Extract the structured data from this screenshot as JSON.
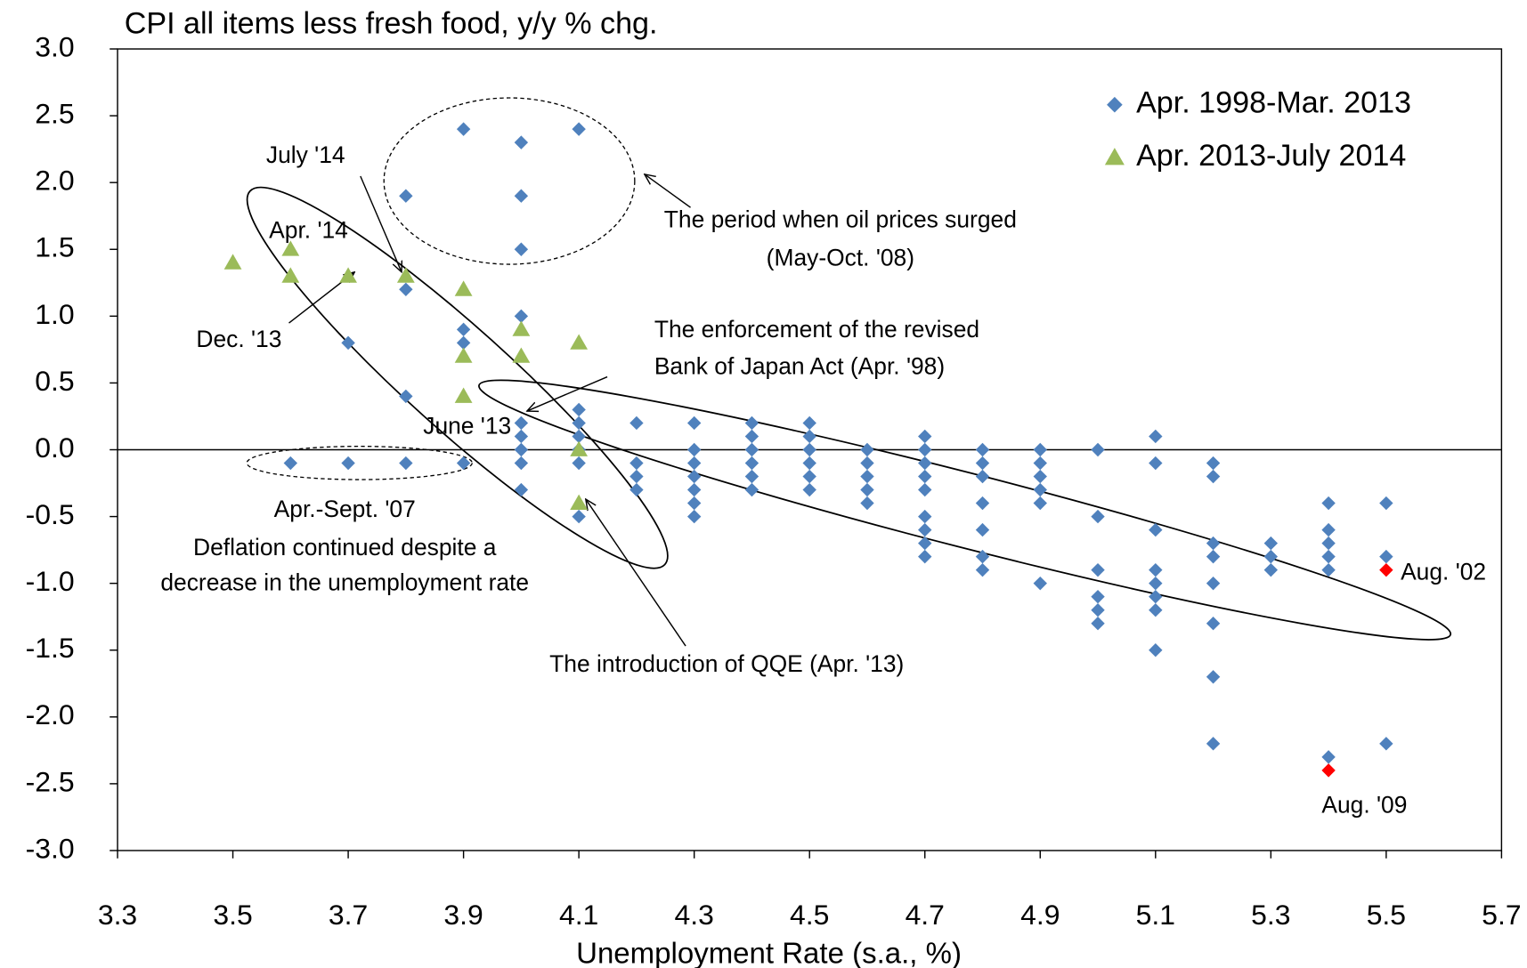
{
  "chart_data": {
    "type": "scatter",
    "title": "CPI all items less fresh food, y/y % chg.",
    "x_label": "Unemployment Rate (s.a., %)",
    "xlim": [
      3.3,
      5.7
    ],
    "xticks": [
      3.3,
      3.5,
      3.7,
      3.9,
      4.1,
      4.3,
      4.5,
      4.7,
      4.9,
      5.1,
      5.3,
      5.5,
      5.7
    ],
    "ylim": [
      -3,
      3
    ],
    "yticks": [
      {
        "value": -3,
        "label": "-3.0"
      },
      -2.5,
      {
        "value": -2,
        "label": "-2.0"
      },
      -1.5,
      {
        "value": -1,
        "label": "-1.0"
      },
      -0.5,
      {
        "value": 0,
        "label": "0.0"
      },
      0.5,
      {
        "value": 1,
        "label": "1.0"
      },
      1.5,
      {
        "value": 2,
        "label": "2.0"
      },
      2.5,
      {
        "value": 3,
        "label": "3.0"
      }
    ],
    "grid": false,
    "legend": "upper right",
    "series": [
      {
        "name": "Apr. 1998-Mar. 2013",
        "color": "#4f81bd",
        "marker": "diamond",
        "x": [
          3.6,
          3.7,
          3.7,
          3.8,
          3.8,
          3.8,
          3.8,
          3.9,
          3.9,
          3.9,
          3.9,
          4.0,
          4.0,
          4.0,
          4.0,
          4.0,
          4.0,
          4.0,
          4.0,
          4.0,
          4.1,
          4.1,
          4.1,
          4.1,
          4.1,
          4.1,
          4.1,
          4.2,
          4.2,
          4.2,
          4.2,
          4.3,
          4.3,
          4.3,
          4.3,
          4.3,
          4.3,
          4.3,
          4.4,
          4.4,
          4.4,
          4.4,
          4.4,
          4.4,
          4.5,
          4.5,
          4.5,
          4.5,
          4.5,
          4.5,
          4.6,
          4.6,
          4.6,
          4.6,
          4.6,
          4.7,
          4.7,
          4.7,
          4.7,
          4.7,
          4.7,
          4.7,
          4.7,
          4.7,
          4.8,
          4.8,
          4.8,
          4.8,
          4.8,
          4.8,
          4.8,
          4.9,
          4.9,
          4.9,
          4.9,
          4.9,
          4.9,
          5.0,
          5.0,
          5.0,
          5.0,
          5.0,
          5.0,
          5.1,
          5.1,
          5.1,
          5.1,
          5.1,
          5.1,
          5.1,
          5.1,
          5.2,
          5.2,
          5.2,
          5.2,
          5.2,
          5.2,
          5.2,
          5.2,
          5.3,
          5.3,
          5.3,
          5.4,
          5.4,
          5.4,
          5.4,
          5.4,
          5.4,
          5.5,
          5.5,
          5.5
        ],
        "values": [
          -0.1,
          0.8,
          -0.1,
          1.9,
          1.2,
          0.4,
          -0.1,
          2.4,
          0.9,
          0.8,
          -0.1,
          2.3,
          1.9,
          1.5,
          1.0,
          0.2,
          0.1,
          0.0,
          -0.1,
          -0.3,
          2.4,
          0.3,
          0.2,
          0.1,
          0.0,
          -0.1,
          -0.5,
          0.2,
          -0.1,
          -0.2,
          -0.3,
          0.2,
          0.0,
          -0.1,
          -0.2,
          -0.3,
          -0.4,
          -0.5,
          0.2,
          0.1,
          0.0,
          -0.1,
          -0.2,
          -0.3,
          0.2,
          0.1,
          0.0,
          -0.1,
          -0.2,
          -0.3,
          0.0,
          -0.1,
          -0.2,
          -0.3,
          -0.4,
          0.1,
          0.0,
          -0.1,
          -0.2,
          -0.3,
          -0.5,
          -0.6,
          -0.7,
          -0.8,
          0.0,
          -0.1,
          -0.2,
          -0.4,
          -0.6,
          -0.8,
          -0.9,
          0.0,
          -0.1,
          -0.2,
          -0.3,
          -0.4,
          -1.0,
          0.0,
          -0.5,
          -0.9,
          -1.1,
          -1.2,
          -1.3,
          0.1,
          -0.1,
          -0.6,
          -0.9,
          -1.0,
          -1.1,
          -1.2,
          -1.5,
          -0.1,
          -0.2,
          -0.7,
          -0.8,
          -1.0,
          -1.3,
          -1.7,
          -2.2,
          -0.7,
          -0.8,
          -0.9,
          -0.4,
          -0.6,
          -0.7,
          -0.8,
          -0.9,
          -2.3,
          -0.4,
          -0.8,
          -2.2
        ]
      },
      {
        "name": "Apr. 2013-July 2014",
        "color": "#9bbb59",
        "marker": "triangle",
        "x": [
          3.5,
          3.6,
          3.6,
          3.7,
          3.8,
          3.9,
          3.9,
          3.9,
          4.0,
          4.0,
          4.1,
          4.1,
          4.1
        ],
        "values": [
          1.4,
          1.5,
          1.3,
          1.3,
          1.3,
          1.2,
          0.7,
          0.4,
          0.9,
          0.7,
          0.8,
          0.0,
          -0.4
        ]
      }
    ],
    "highlights": {
      "color": "#ff0000",
      "x": [
        5.5,
        5.4
      ],
      "values": [
        -0.9,
        -2.4
      ],
      "labels": [
        "Aug. '02",
        "Aug. '09"
      ]
    },
    "annotations": [
      "July '14",
      "Apr. '14",
      "Dec. '13",
      "June '13",
      "The period when oil prices surged",
      "(May-Oct. '08)",
      "The enforcement of the revised",
      "Bank of Japan Act (Apr. '98)",
      "Apr.-Sept. '07",
      "Deflation continued despite a",
      "decrease in the unemployment rate",
      "The introduction of QQE (Apr. '13)"
    ]
  }
}
